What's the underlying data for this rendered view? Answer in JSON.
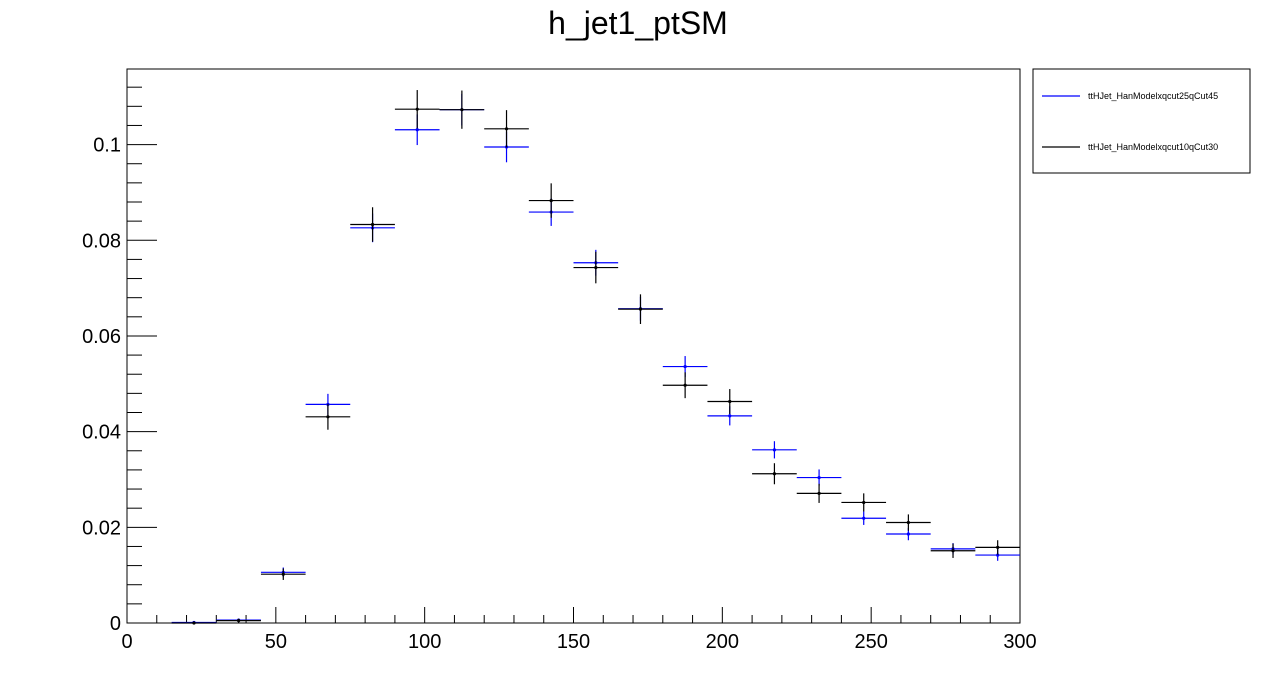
{
  "chart_data": {
    "type": "scatter",
    "title": "h_jet1_ptSM",
    "xlabel": "",
    "ylabel": "",
    "xlim": [
      0,
      300
    ],
    "ylim": [
      0,
      0.1158
    ],
    "x_ticks": [
      0,
      50,
      100,
      150,
      200,
      250,
      300
    ],
    "x_tick_labels": [
      "0",
      "50",
      "100",
      "150",
      "200",
      "250",
      "300"
    ],
    "y_ticks": [
      0,
      0.02,
      0.04,
      0.06,
      0.08,
      0.1
    ],
    "y_tick_labels": [
      "0",
      "0.02",
      "0.04",
      "0.06",
      "0.08",
      "0.1"
    ],
    "grid": false,
    "legend_position": "top-right, outside plot",
    "bin_width": 15,
    "x": [
      22.5,
      37.5,
      52.5,
      67.5,
      82.5,
      97.5,
      112.5,
      127.5,
      142.5,
      157.5,
      172.5,
      187.5,
      202.5,
      217.5,
      232.5,
      247.5,
      262.5,
      277.5,
      292.5
    ],
    "series": [
      {
        "name": "ttHJet_HanModelxqcut25qCut45",
        "color": "#0000ff",
        "values": [
          0.0001,
          0.0006,
          0.0106,
          0.0457,
          0.0826,
          0.1031,
          0.1073,
          0.0995,
          0.0859,
          0.0753,
          0.0657,
          0.0536,
          0.0433,
          0.0362,
          0.0304,
          0.0219,
          0.0186,
          0.0155,
          0.0142
        ],
        "errors": [
          0.0001,
          0.0003,
          0.001,
          0.0022,
          0.003,
          0.0032,
          0.0033,
          0.0032,
          0.0029,
          0.0027,
          0.0025,
          0.0022,
          0.002,
          0.0018,
          0.0017,
          0.0014,
          0.0013,
          0.0012,
          0.0012
        ]
      },
      {
        "name": "ttHJet_HanModelxqcut10qCut30",
        "color": "#000000",
        "values": [
          0.0,
          0.0005,
          0.0102,
          0.0431,
          0.0833,
          0.1074,
          0.1073,
          0.1033,
          0.0883,
          0.0743,
          0.0656,
          0.0497,
          0.0463,
          0.0312,
          0.0271,
          0.0252,
          0.021,
          0.0151,
          0.0158
        ],
        "errors": [
          0.0,
          0.0004,
          0.0012,
          0.0027,
          0.0036,
          0.004,
          0.004,
          0.0039,
          0.0036,
          0.0033,
          0.0031,
          0.0027,
          0.0026,
          0.0022,
          0.002,
          0.0019,
          0.0017,
          0.0015,
          0.0015
        ]
      }
    ]
  }
}
